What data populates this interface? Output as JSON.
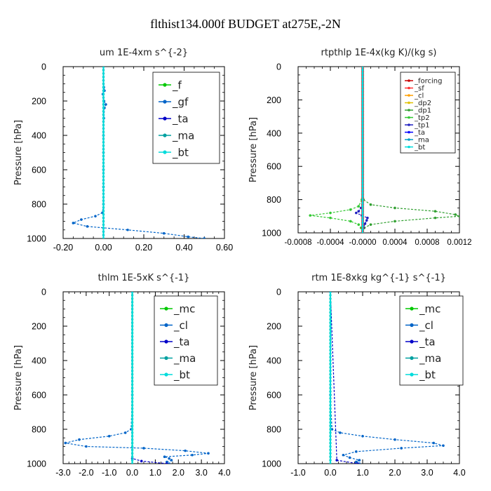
{
  "suptitle": "flthist134.000f  BUDGET at275E,-2N",
  "chart_data": [
    {
      "type": "line",
      "title": "um   1E-4xm s^{-2}",
      "xlabel": "",
      "ylabel": "Pressure [hPa]",
      "xlim": [
        -0.2,
        0.6
      ],
      "xticks": [
        "-0.20",
        "0.00",
        "0.20",
        "0.40",
        "0.60"
      ],
      "ylim": [
        0,
        1000
      ],
      "yticks": [
        "0",
        "200",
        "400",
        "600",
        "800",
        "1000"
      ],
      "legend_loc": "top-right",
      "series": [
        {
          "name": "_f",
          "color": "#00c800",
          "p": [
            0,
            200,
            400,
            600,
            800,
            1000
          ],
          "v": [
            0,
            0,
            0,
            0,
            0,
            0
          ]
        },
        {
          "name": "_gf",
          "color": "#0064c8",
          "p": [
            0,
            120,
            140,
            160,
            200,
            220,
            240,
            300,
            400,
            500,
            600,
            700,
            800,
            850,
            870,
            890,
            910,
            930,
            950,
            970,
            990,
            1000
          ],
          "v": [
            0,
            0.002,
            0.005,
            -0.003,
            0.003,
            0.012,
            0.005,
            0.002,
            0,
            0,
            0,
            0,
            0,
            -0.005,
            -0.04,
            -0.11,
            -0.15,
            -0.08,
            0.12,
            0.3,
            0.42,
            0.5
          ]
        },
        {
          "name": "_ta",
          "color": "#0000c8",
          "p": [
            0,
            1000
          ],
          "v": [
            0,
            0
          ]
        },
        {
          "name": "_ma",
          "color": "#00a0a0",
          "p": [
            0,
            1000
          ],
          "v": [
            0,
            0
          ]
        },
        {
          "name": "_bt",
          "color": "#00dcdc",
          "p": [
            0,
            1000
          ],
          "v": [
            0,
            0
          ]
        }
      ]
    },
    {
      "type": "line",
      "title": "rtpthlp   1E-4x(kg K)/(kg s)",
      "xlabel": "",
      "ylabel": "Pressure [hPa]",
      "xlim": [
        -0.0008,
        0.0012
      ],
      "xticks": [
        "-0.0008",
        "-0.0004",
        "-0.0000",
        "0.0004",
        "0.0008",
        "0.0012"
      ],
      "ylim": [
        0,
        1000
      ],
      "yticks": [
        "0",
        "200",
        "400",
        "600",
        "800",
        "1000"
      ],
      "legend_loc": "top-right",
      "series": [
        {
          "name": "_forcing",
          "color": "#c80000",
          "p": [
            0,
            1000
          ],
          "v": [
            0,
            0
          ]
        },
        {
          "name": "_sf",
          "color": "#ff3030",
          "p": [
            0,
            1000
          ],
          "v": [
            0,
            0
          ]
        },
        {
          "name": "_cl",
          "color": "#ffa000",
          "p": [
            0,
            1000
          ],
          "v": [
            0,
            0
          ]
        },
        {
          "name": "_dp2",
          "color": "#e0c000",
          "p": [
            0,
            1000
          ],
          "v": [
            0,
            0
          ]
        },
        {
          "name": "_dp1",
          "color": "#32a032",
          "p": [
            0,
            600,
            800,
            830,
            850,
            870,
            890,
            900,
            910,
            930,
            950,
            970,
            990,
            1000
          ],
          "v": [
            0,
            0,
            1e-05,
            0.0001,
            0.0004,
            0.0009,
            0.00115,
            0.0012,
            0.0009,
            0.0004,
            0.0001,
            2e-05,
            0,
            0
          ]
        },
        {
          "name": "_tp2",
          "color": "#32c832",
          "p": [
            0,
            600,
            800,
            840,
            860,
            880,
            895,
            910,
            930,
            950,
            970,
            990,
            1000
          ],
          "v": [
            0,
            0,
            -1e-05,
            -5e-05,
            -0.00015,
            -0.0004,
            -0.00065,
            -0.0004,
            -0.00015,
            -5e-05,
            -2e-05,
            0,
            0
          ]
        },
        {
          "name": "_tp1",
          "color": "#2020c0",
          "p": [
            0,
            800,
            850,
            870,
            880,
            895,
            910,
            925,
            945,
            970,
            1000
          ],
          "v": [
            0,
            0,
            -2e-05,
            -5e-05,
            -8e-05,
            -1e-05,
            6e-05,
            5e-05,
            3e-05,
            1e-05,
            0
          ]
        },
        {
          "name": "_ta",
          "color": "#0000ff",
          "p": [
            0,
            1000
          ],
          "v": [
            0,
            0
          ]
        },
        {
          "name": "_ma",
          "color": "#00a0c8",
          "p": [
            0,
            1000
          ],
          "v": [
            0,
            0
          ]
        },
        {
          "name": "_bt",
          "color": "#00dcdc",
          "p": [
            0,
            1000
          ],
          "v": [
            0,
            0
          ]
        }
      ]
    },
    {
      "type": "line",
      "title": "thlm   1E-5xK s^{-1}",
      "xlabel": "",
      "ylabel": "Pressure [hPa]",
      "xlim": [
        -3.0,
        4.0
      ],
      "xticks": [
        "-3.0",
        "-2.0",
        "-1.0",
        "0.0",
        "1.0",
        "2.0",
        "3.0",
        "4.0"
      ],
      "ylim": [
        0,
        1000
      ],
      "yticks": [
        "0",
        "200",
        "400",
        "600",
        "800",
        "1000"
      ],
      "legend_loc": "top-right",
      "series": [
        {
          "name": "_mc",
          "color": "#00c800",
          "p": [
            0,
            200,
            400,
            600,
            800,
            1000
          ],
          "v": [
            0,
            0,
            0,
            0,
            0,
            0
          ]
        },
        {
          "name": "_cl",
          "color": "#0064c8",
          "p": [
            0,
            600,
            800,
            820,
            840,
            860,
            880,
            900,
            910,
            925,
            940,
            950,
            960,
            970,
            980,
            990,
            1000
          ],
          "v": [
            0,
            0,
            -0.05,
            -0.3,
            -1.0,
            -2.3,
            -2.9,
            -2.0,
            0.5,
            2.3,
            3.3,
            2.6,
            1.4,
            1.6,
            1.7,
            1.5,
            1.6
          ]
        },
        {
          "name": "_ta",
          "color": "#0000c8",
          "p": [
            0,
            970,
            985,
            1000
          ],
          "v": [
            0,
            0,
            0.4,
            1.5
          ]
        },
        {
          "name": "_ma",
          "color": "#00a0a0",
          "p": [
            0,
            1000
          ],
          "v": [
            0,
            0
          ]
        },
        {
          "name": "_bt",
          "color": "#00dcdc",
          "p": [
            0,
            1000
          ],
          "v": [
            0,
            0
          ]
        }
      ]
    },
    {
      "type": "line",
      "title": "rtm   1E-8xkg kg^{-1} s^{-1}",
      "xlabel": "",
      "ylabel": "Pressure [hPa]",
      "xlim": [
        -1.0,
        4.0
      ],
      "xticks": [
        "-1.0",
        "0.0",
        "1.0",
        "2.0",
        "3.0",
        "4.0"
      ],
      "ylim": [
        0,
        1000
      ],
      "yticks": [
        "0",
        "200",
        "400",
        "600",
        "800",
        "1000"
      ],
      "legend_loc": "top-right",
      "series": [
        {
          "name": "_mc",
          "color": "#00c800",
          "p": [
            0,
            200,
            400,
            600,
            800,
            1000
          ],
          "v": [
            0,
            0,
            0,
            0,
            0,
            0
          ]
        },
        {
          "name": "_cl",
          "color": "#0064c8",
          "p": [
            0,
            600,
            800,
            820,
            840,
            860,
            880,
            895,
            910,
            930,
            950,
            965,
            980,
            990,
            1000
          ],
          "v": [
            0,
            0,
            0.05,
            0.3,
            1.0,
            2.0,
            3.2,
            3.5,
            2.2,
            0.8,
            0.4,
            0.6,
            0.9,
            0.8,
            0.9
          ]
        },
        {
          "name": "_ta",
          "color": "#0000c8",
          "p": [
            0,
            980,
            1000
          ],
          "v": [
            0,
            0.2,
            0.85
          ]
        },
        {
          "name": "_ma",
          "color": "#00a0a0",
          "p": [
            0,
            1000
          ],
          "v": [
            0,
            0
          ]
        },
        {
          "name": "_bt",
          "color": "#00dcdc",
          "p": [
            0,
            1000
          ],
          "v": [
            0,
            0
          ]
        }
      ]
    }
  ]
}
